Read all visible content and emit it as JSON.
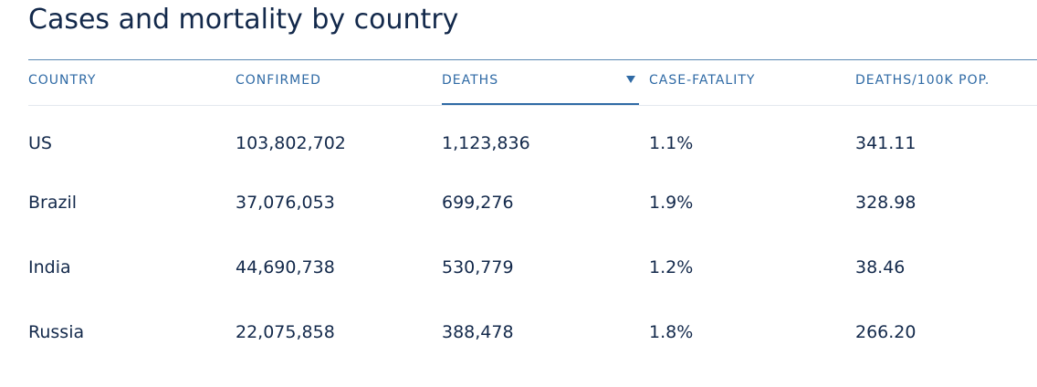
{
  "title": "Cases and mortality by country",
  "columns": [
    {
      "label": "COUNTRY"
    },
    {
      "label": "CONFIRMED"
    },
    {
      "label": "DEATHS",
      "sorted": "descending"
    },
    {
      "label": "CASE-FATALITY"
    },
    {
      "label": "DEATHS/100K POP."
    }
  ],
  "rows": [
    [
      "US",
      "103,802,702",
      "1,123,836",
      "1.1%",
      "341.11"
    ],
    [
      "Brazil",
      "37,076,053",
      "699,276",
      "1.9%",
      "328.98"
    ],
    [
      "India",
      "44,690,738",
      "530,779",
      "1.2%",
      "38.46"
    ],
    [
      "Russia",
      "22,075,858",
      "388,478",
      "1.8%",
      "266.20"
    ]
  ],
  "icons": {
    "sort": "sort-descending-icon"
  },
  "colors": {
    "title": "#13294b",
    "header": "#2f6aa5",
    "rule": "#5a88b3",
    "text": "#13294b"
  }
}
